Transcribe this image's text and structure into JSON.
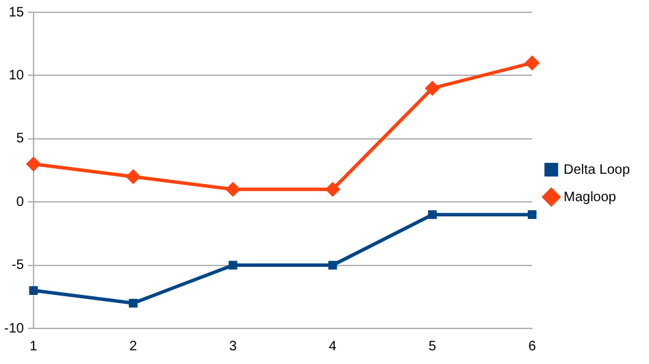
{
  "chart_data": {
    "type": "line",
    "categories": [
      "1",
      "2",
      "3",
      "4",
      "5",
      "6"
    ],
    "series": [
      {
        "name": "Delta Loop",
        "color": "#004586",
        "marker": "square",
        "values": [
          -7,
          -8,
          -5,
          -5,
          -1,
          -1
        ]
      },
      {
        "name": "Magloop",
        "color": "#ff420e",
        "marker": "diamond",
        "values": [
          3,
          2,
          1,
          1,
          9,
          11
        ]
      }
    ],
    "ylim": [
      -10,
      15
    ],
    "yticks": [
      -10,
      -5,
      0,
      5,
      10,
      15
    ],
    "grid": "y",
    "legend": "right",
    "line_style": "solid"
  }
}
